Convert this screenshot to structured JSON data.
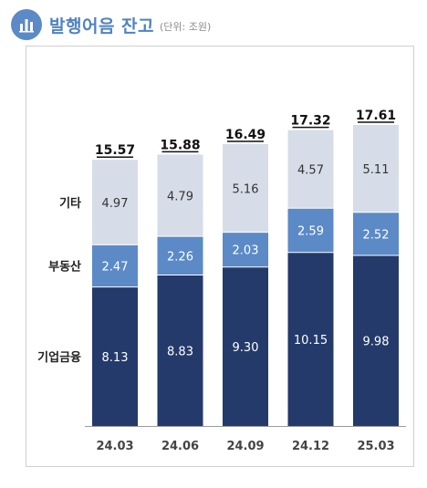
{
  "header": {
    "title": "발행어음 잔고",
    "unit": "(단위: 조원)",
    "icon": "bar-chart-icon"
  },
  "colors": {
    "corporate_finance": "#243a6b",
    "real_estate": "#5b8ac7",
    "other": "#d6dde8",
    "header_accent": "#4f82c4"
  },
  "chart_data": {
    "type": "bar",
    "stacked": true,
    "categories": [
      "24.03",
      "24.06",
      "24.09",
      "24.12",
      "25.03"
    ],
    "series": [
      {
        "name": "기업금융",
        "values": [
          8.13,
          8.83,
          9.3,
          10.15,
          9.98
        ],
        "color": "#243a6b",
        "label_color": "#ffffff"
      },
      {
        "name": "부동산",
        "values": [
          2.47,
          2.26,
          2.03,
          2.59,
          2.52
        ],
        "color": "#5b8ac7",
        "label_color": "#ffffff"
      },
      {
        "name": "기타",
        "values": [
          4.97,
          4.79,
          5.16,
          4.57,
          5.11
        ],
        "color": "#d6dde8",
        "label_color": "#333333"
      }
    ],
    "value_labels": {
      "기업금융": [
        "8.13",
        "8.83",
        "9.30",
        "10.15",
        "9.98"
      ],
      "부동산": [
        "2.47",
        "2.26",
        "2.03",
        "2.59",
        "2.52"
      ],
      "기타": [
        "4.97",
        "4.79",
        "5.16",
        "4.57",
        "5.11"
      ]
    },
    "totals": [
      "15.57",
      "15.88",
      "16.49",
      "17.32",
      "17.61"
    ],
    "ylim": [
      0,
      17.61
    ],
    "grid": false,
    "legend": "left"
  }
}
